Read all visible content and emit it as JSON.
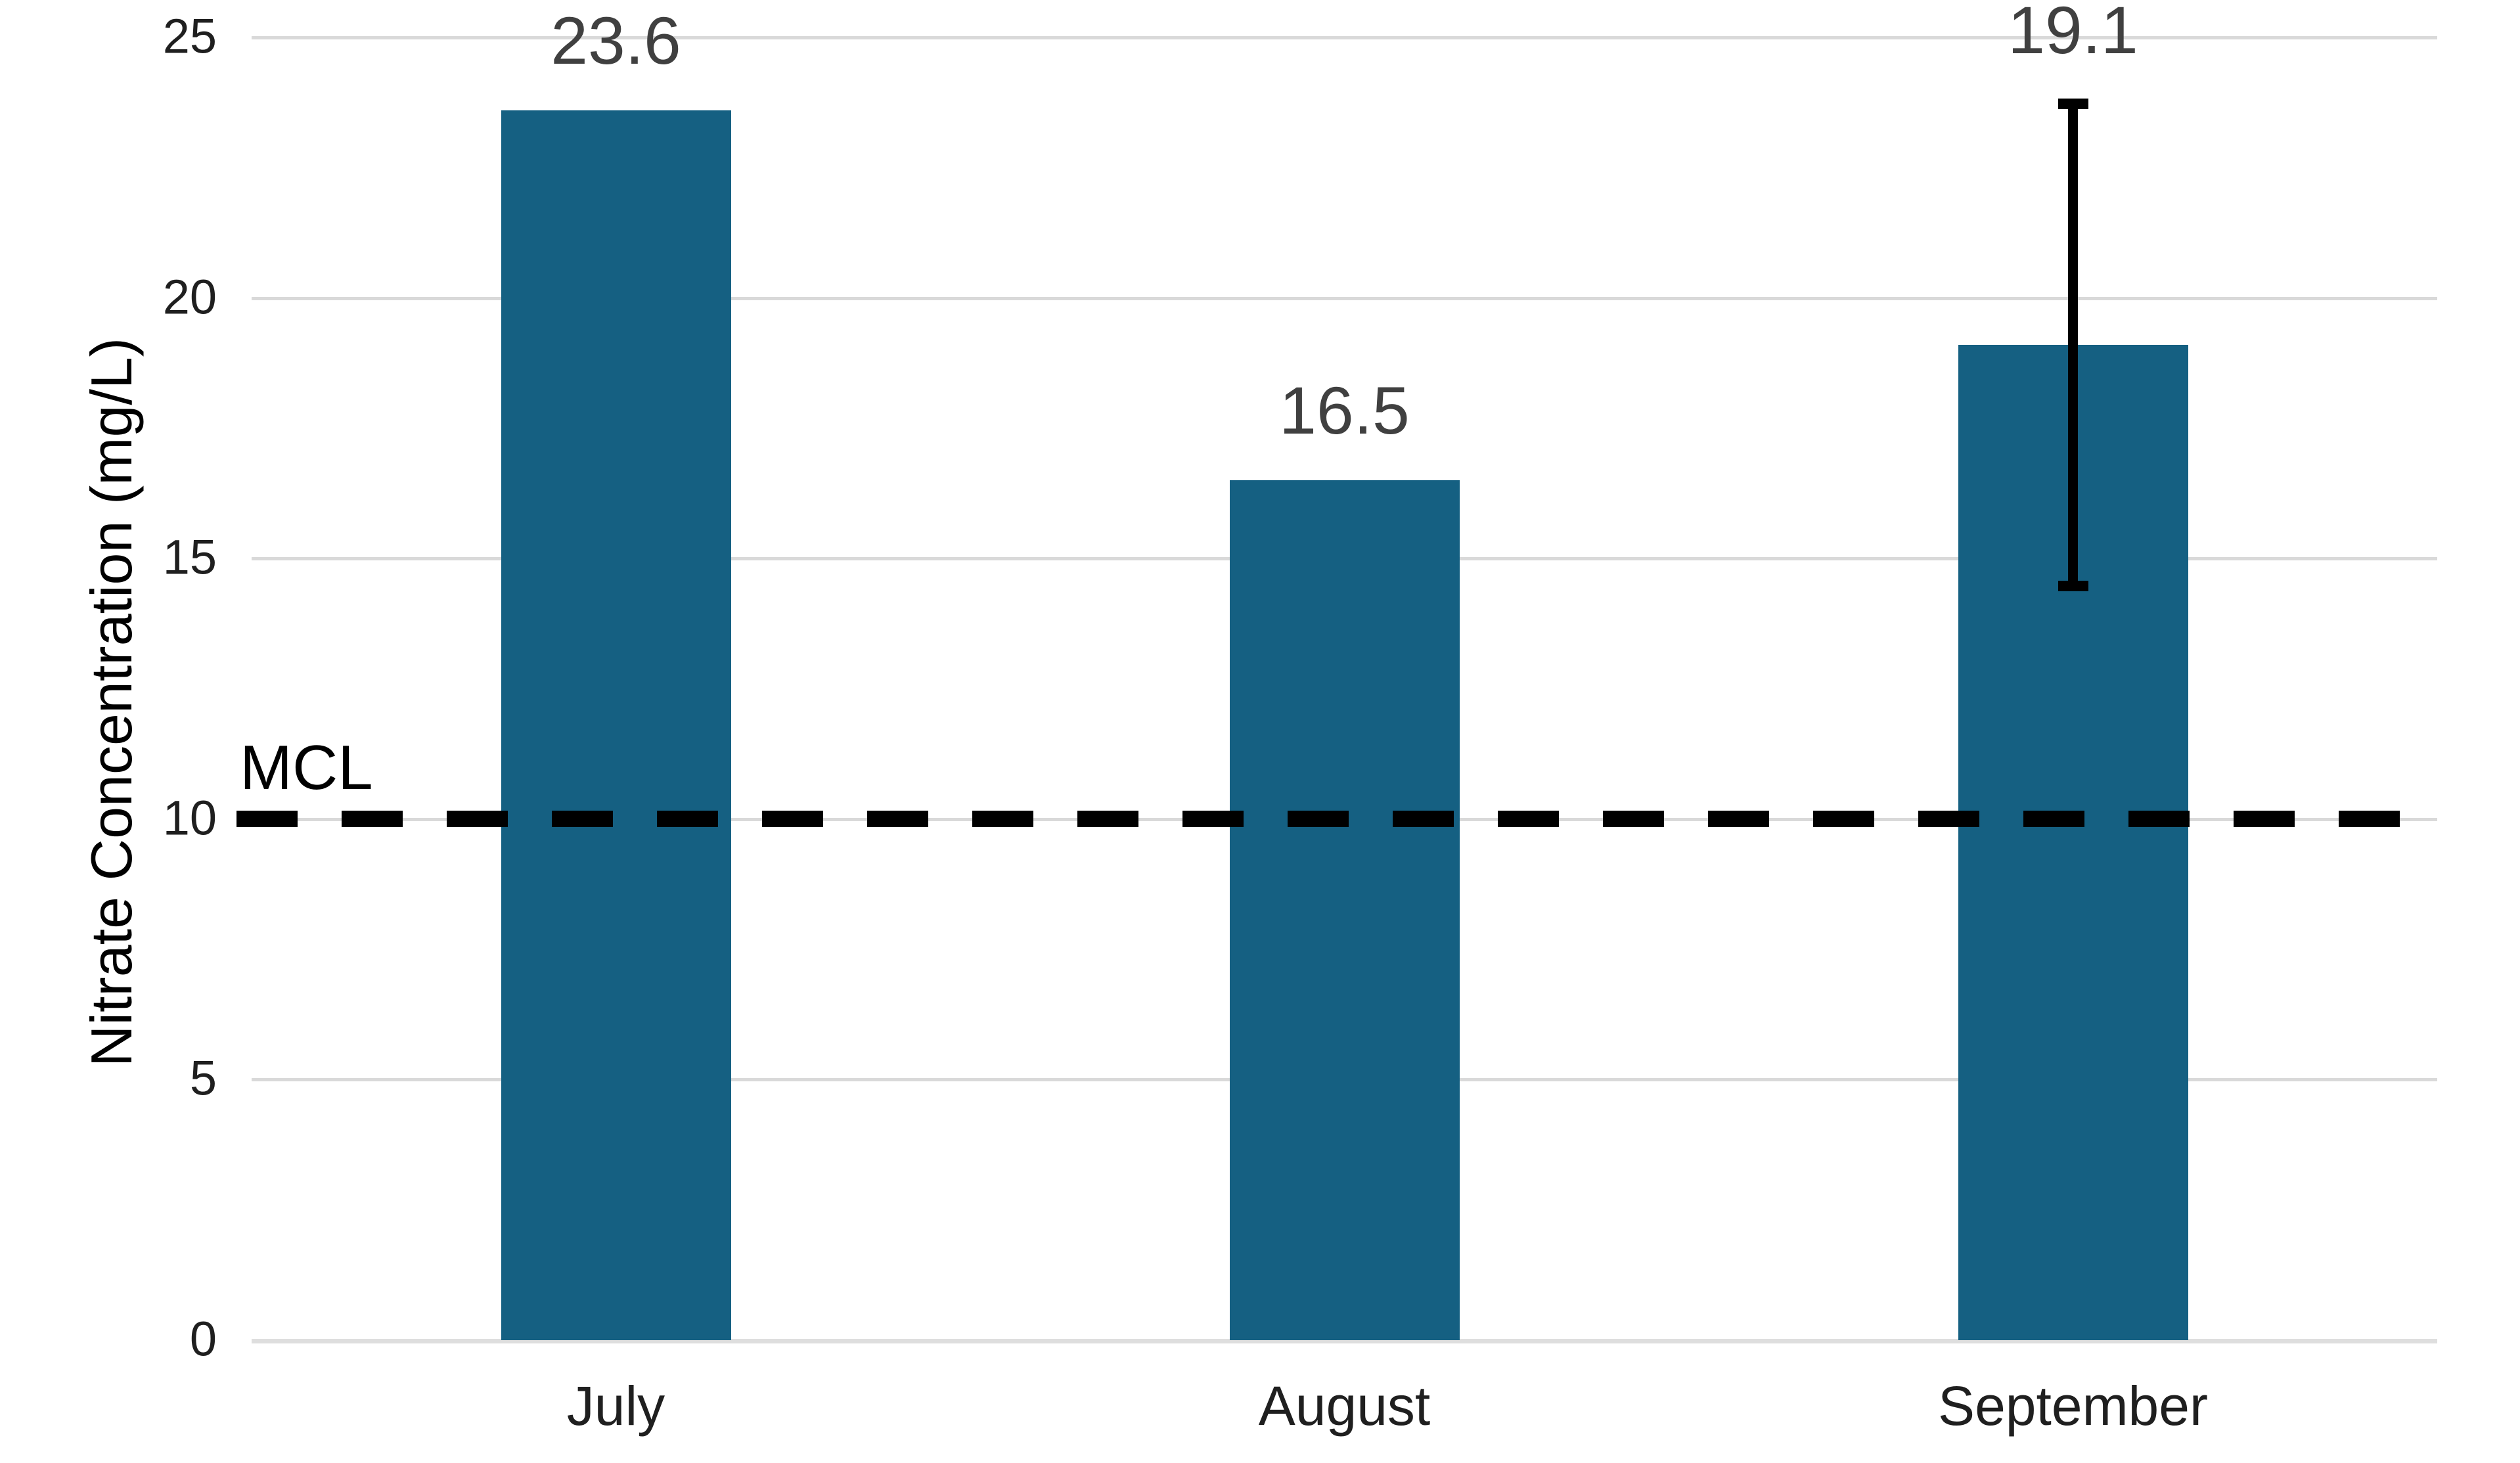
{
  "chart_data": {
    "type": "bar",
    "categories": [
      "July",
      "August",
      "September"
    ],
    "values": [
      23.6,
      16.5,
      19.1
    ],
    "value_labels": [
      "23.6",
      "16.5",
      "19.1"
    ],
    "xlabel": "",
    "ylabel": "Nitrate Concentration (mg/L)",
    "ylim": [
      0,
      25
    ],
    "yticks": [
      0,
      5,
      10,
      15,
      20,
      25
    ],
    "grid": true,
    "legend": false,
    "bar_color": "#156082",
    "error_bars": [
      {
        "category": "September",
        "index": 2,
        "low": 14.4,
        "high": 23.8
      }
    ],
    "reference_line": {
      "label": "MCL",
      "value": 10,
      "style": "dashed",
      "color": "#000000"
    },
    "colors": {
      "bar_fill": "#156082",
      "gridline": "#d9d9d9",
      "value_label": "#404040",
      "tick_label": "#1f1f1f",
      "reference_line": "#000000",
      "error_bar": "#000000",
      "background": "#ffffff"
    }
  }
}
